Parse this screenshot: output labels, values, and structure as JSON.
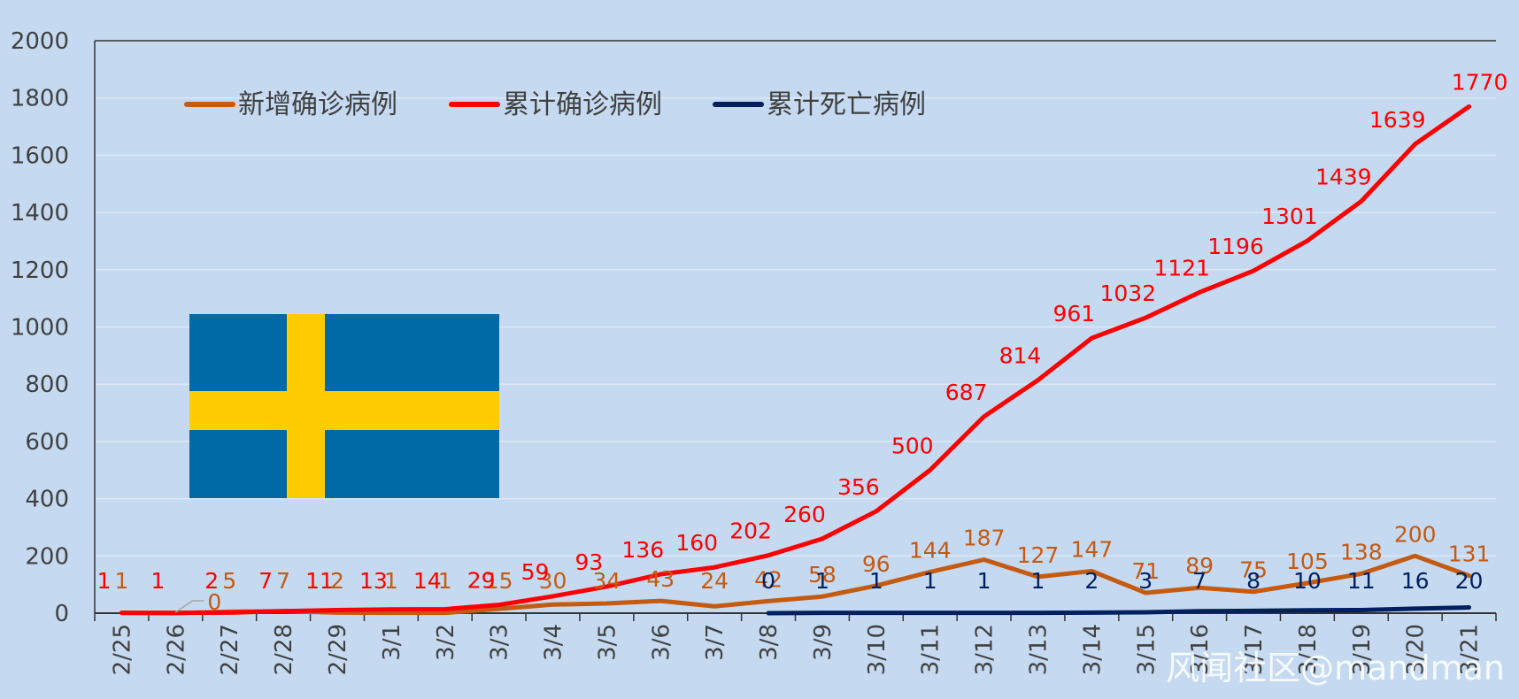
{
  "chart_data": {
    "type": "line",
    "title": "",
    "xlabel": "",
    "ylabel": "",
    "ylim": [
      0,
      2000
    ],
    "yticks": [
      0,
      200,
      400,
      600,
      800,
      1000,
      1200,
      1400,
      1600,
      1800,
      2000
    ],
    "grid": true,
    "legend_position": "top-left",
    "categories": [
      "2/25",
      "2/26",
      "2/27",
      "2/28",
      "2/29",
      "3/1",
      "3/2",
      "3/3",
      "3/4",
      "3/5",
      "3/6",
      "3/7",
      "3/8",
      "3/9",
      "3/10",
      "3/11",
      "3/12",
      "3/13",
      "3/14",
      "3/15",
      "3/16",
      "3/17",
      "3/18",
      "3/19",
      "3/20",
      "3/21"
    ],
    "series": [
      {
        "name": "新增确诊病例",
        "color": "#c55a11",
        "values": [
          1,
          0,
          5,
          7,
          2,
          1,
          1,
          15,
          30,
          34,
          43,
          24,
          42,
          58,
          96,
          144,
          187,
          127,
          147,
          71,
          89,
          75,
          105,
          138,
          200,
          131
        ]
      },
      {
        "name": "累计确诊病例",
        "color": "#ff0000",
        "values": [
          1,
          1,
          2,
          7,
          11,
          13,
          14,
          29,
          59,
          93,
          136,
          160,
          202,
          260,
          356,
          500,
          687,
          814,
          961,
          1032,
          1121,
          1196,
          1301,
          1439,
          1639,
          1770
        ]
      },
      {
        "name": "累计死亡病例",
        "color": "#002060",
        "values": [
          null,
          null,
          null,
          null,
          null,
          null,
          null,
          null,
          null,
          null,
          null,
          null,
          0,
          1,
          1,
          1,
          1,
          1,
          2,
          3,
          7,
          8,
          10,
          11,
          16,
          20
        ]
      }
    ]
  },
  "flag": {
    "name": "sweden-flag",
    "blue": "#006aa7",
    "yellow": "#fecc00"
  },
  "watermark": "风闻社区@mandman",
  "colors": {
    "background": "#c5daf1",
    "grid": "#dce8f6",
    "axis": "#333333"
  }
}
